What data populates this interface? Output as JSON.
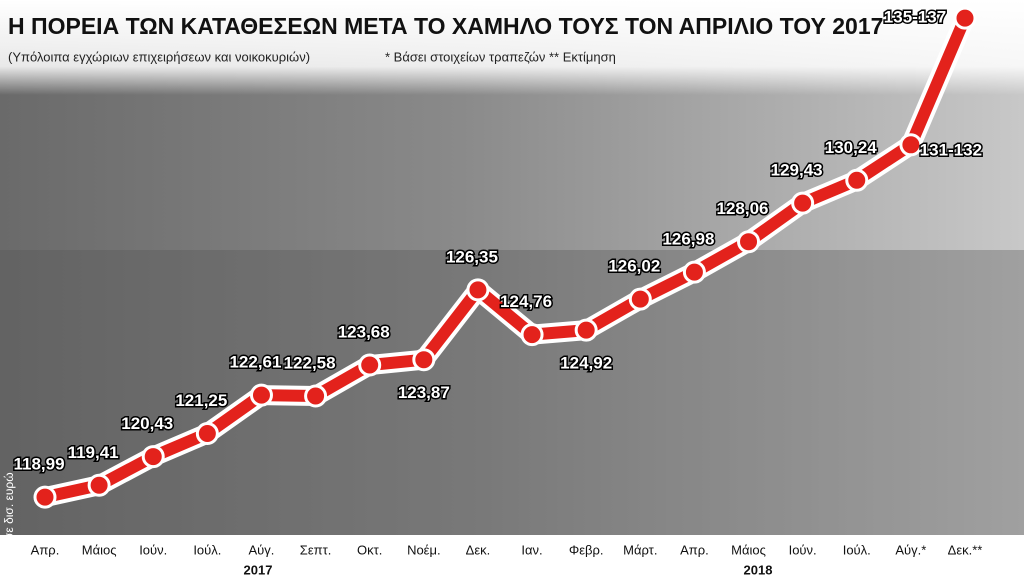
{
  "chart_data": {
    "type": "line",
    "title": "Η ΠΟΡΕΙΑ ΤΩΝ ΚΑΤΑΘΕΣΕΩΝ ΜΕΤΑ ΤΟ ΧΑΜΗΛΟ ΤΟΥΣ ΤΟΝ ΑΠΡΙΛΙΟ ΤΟΥ 2017",
    "subtitle": "(Υπόλοιπα εγχώριων επιχειρήσεων και νοικοκυριών)",
    "note": "* Βάσει στοιχείων τραπεζών ** Εκτίμηση",
    "y_label": "σε δισ. ευρώ",
    "years": [
      "2017",
      "2018"
    ],
    "categories": [
      "Απρ.",
      "Μάιος",
      "Ιούν.",
      "Ιούλ.",
      "Αύγ.",
      "Σεπτ.",
      "Οκτ.",
      "Νοέμ.",
      "Δεκ.",
      "Ιαν.",
      "Φεβρ.",
      "Μάρτ.",
      "Απρ.",
      "Μάιος",
      "Ιούν.",
      "Ιούλ.",
      "Αύγ.*",
      "Δεκ.**"
    ],
    "values": [
      118.99,
      119.41,
      120.43,
      121.25,
      122.61,
      122.58,
      123.68,
      123.87,
      126.35,
      124.76,
      124.92,
      126.02,
      126.98,
      128.06,
      129.43,
      130.24,
      131.5,
      136
    ],
    "value_labels": [
      "118,99",
      "119,41",
      "120,43",
      "121,25",
      "122,61",
      "122,58",
      "123,68",
      "123,87",
      "126,35",
      "124,76",
      "124,92",
      "126,02",
      "126,98",
      "128,06",
      "129,43",
      "130,24",
      "131-132",
      "135-137"
    ],
    "color": "#e3221c",
    "ylim": [
      118,
      136.5
    ]
  }
}
